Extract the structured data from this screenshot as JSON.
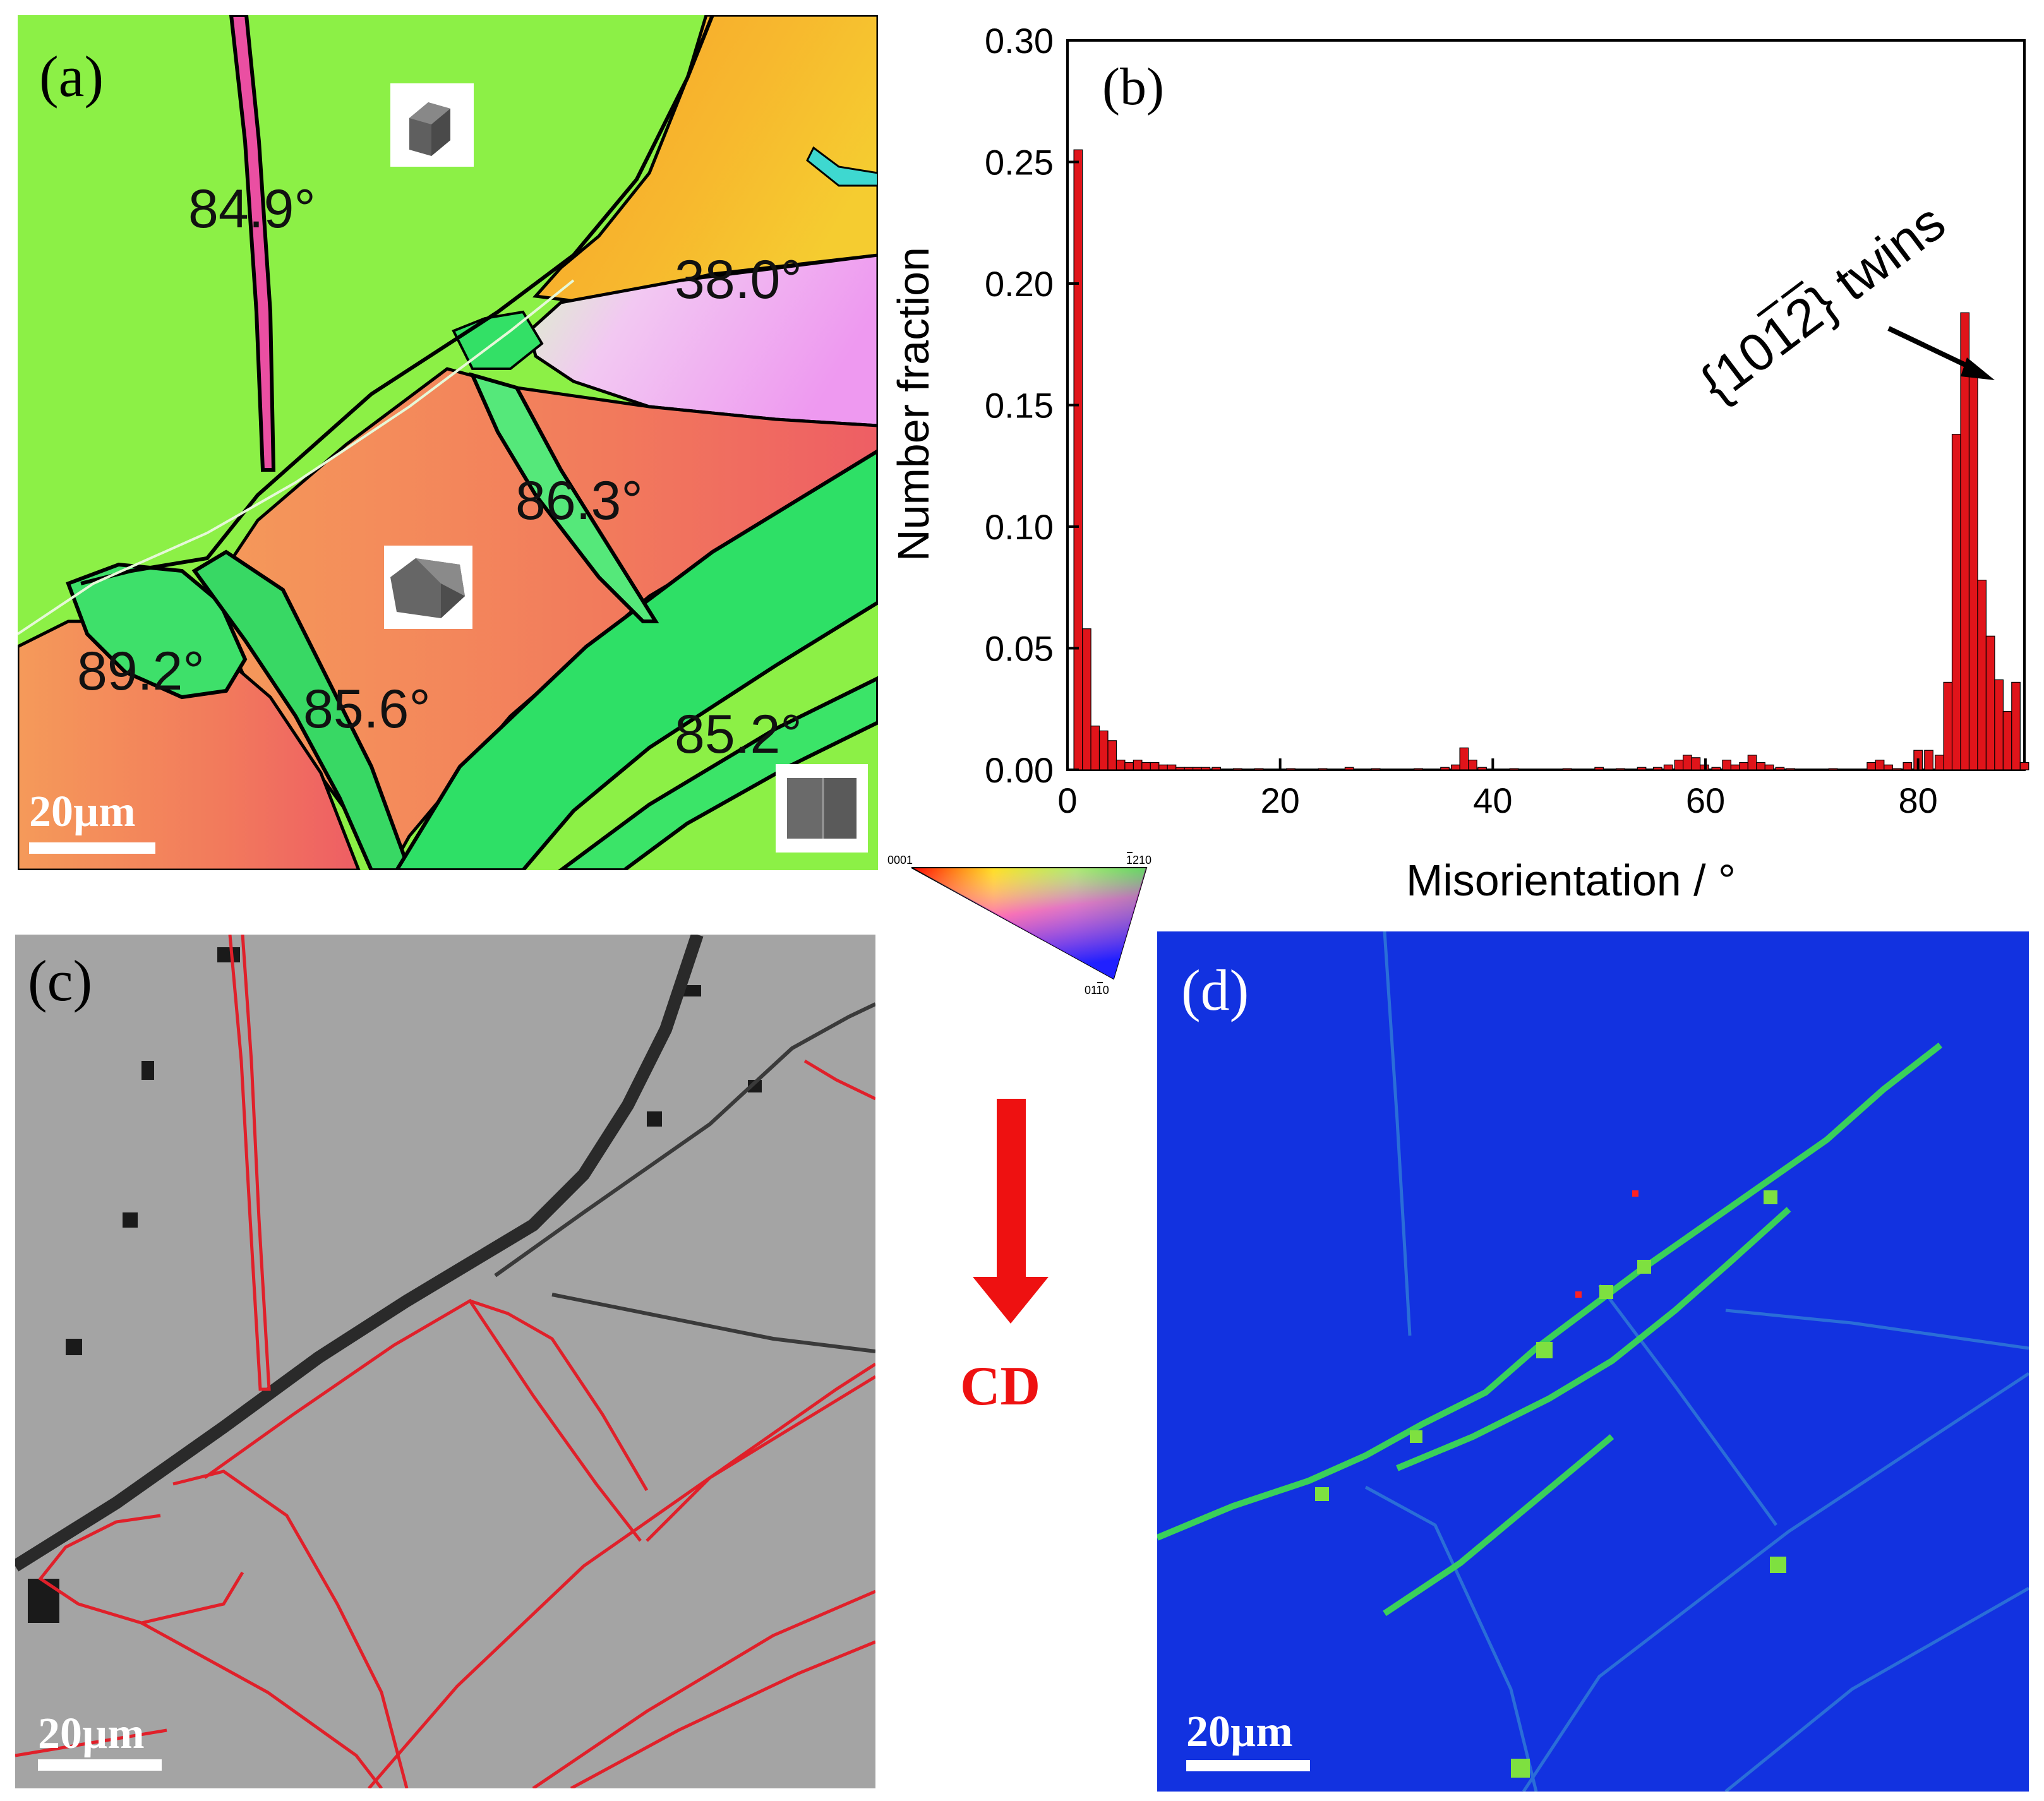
{
  "figure": {
    "panel_a": {
      "label": "(a)",
      "scale_bar": "20µm",
      "angles": [
        "84.9°",
        "38.0°",
        "86.3°",
        "89.2°",
        "85.6°",
        "85.2°"
      ]
    },
    "panel_b": {
      "label": "(b)",
      "annotation": "{1012} twins",
      "annotation_overbar_digits": "1, 2"
    },
    "ipf_legend": {
      "corner_top_left": "0001",
      "corner_top_right": "1210",
      "corner_bottom": "0110"
    },
    "panel_c": {
      "label": "(c)",
      "scale_bar": "20µm"
    },
    "direction_marker": {
      "label": "CD"
    },
    "panel_d": {
      "label": "(d)",
      "scale_bar": "20µm"
    }
  },
  "colors": {
    "bar": "#e0141a",
    "boundary_red": "#e0202a",
    "arrow_red": "#ee1111",
    "kam_bg": "#1030e0"
  },
  "chart_data": {
    "type": "bar",
    "title": "",
    "xlabel": "Misorientation / °",
    "ylabel": "Number fraction",
    "xlim": [
      0,
      90
    ],
    "ylim": [
      0,
      0.3
    ],
    "xticks": [
      0,
      20,
      40,
      60,
      80
    ],
    "xtick_labels": [
      "0",
      "20",
      "40",
      "60",
      "80"
    ],
    "yticks": [
      0,
      0.05,
      0.1,
      0.15,
      0.2,
      0.25,
      0.3
    ],
    "ytick_labels": [
      "0.00",
      "0.05",
      "0.10",
      "0.15",
      "0.20",
      "0.25",
      "0.30"
    ],
    "bin_width": 0.8,
    "x": [
      1.0,
      1.8,
      2.6,
      3.4,
      4.2,
      5.0,
      5.8,
      6.6,
      7.4,
      8.2,
      9.0,
      9.8,
      10.6,
      11.4,
      12.2,
      13.0,
      14.0,
      16.0,
      18.0,
      21.0,
      24.0,
      26.5,
      29.0,
      33.0,
      35.5,
      36.5,
      37.3,
      38.1,
      39.0,
      42.0,
      47.0,
      50.0,
      52.0,
      54.0,
      55.5,
      56.5,
      57.5,
      58.3,
      59.1,
      59.9,
      61.0,
      62.0,
      62.8,
      63.6,
      64.4,
      65.2,
      66.0,
      67.0,
      68.0,
      72.0,
      75.6,
      76.4,
      77.2,
      78.0,
      79.0,
      80.0,
      81.0,
      82.0,
      82.8,
      83.6,
      84.4,
      85.2,
      86.0,
      86.8,
      87.6,
      88.4,
      89.2,
      90.0
    ],
    "values": [
      0.255,
      0.058,
      0.018,
      0.016,
      0.012,
      0.004,
      0.003,
      0.004,
      0.003,
      0.003,
      0.002,
      0.002,
      0.001,
      0.001,
      0.001,
      0.001,
      0.001,
      0.0005,
      0.0005,
      0.0005,
      0.0005,
      0.001,
      0.0005,
      0.0005,
      0.001,
      0.002,
      0.009,
      0.004,
      0.001,
      0.0005,
      0.0005,
      0.001,
      0.0005,
      0.001,
      0.001,
      0.002,
      0.004,
      0.006,
      0.005,
      0.002,
      0.001,
      0.004,
      0.002,
      0.003,
      0.006,
      0.003,
      0.002,
      0.001,
      0.0005,
      0.0005,
      0.003,
      0.004,
      0.002,
      0.0005,
      0.003,
      0.008,
      0.008,
      0.006,
      0.036,
      0.138,
      0.188,
      0.162,
      0.078,
      0.055,
      0.037,
      0.024,
      0.036,
      0.003
    ]
  }
}
